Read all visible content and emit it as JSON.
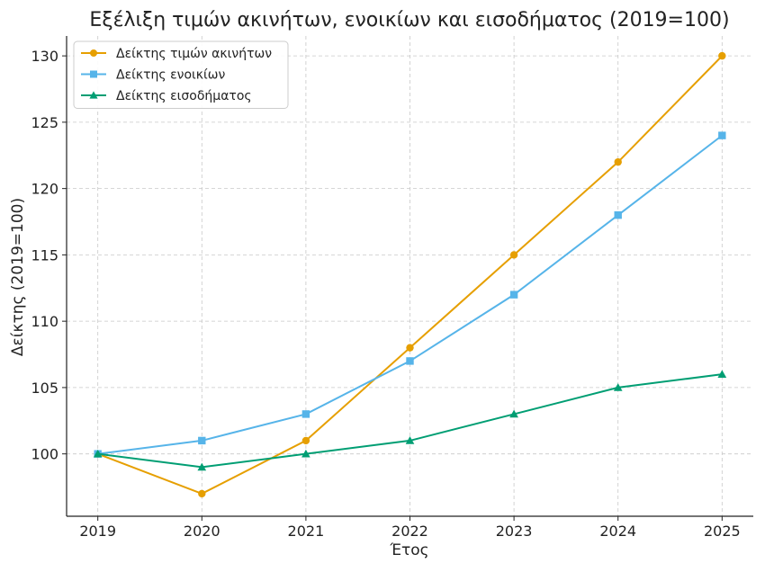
{
  "chart_data": {
    "type": "line",
    "title": "Εξέλιξη τιμών ακινήτων, ενοικίων και εισοδήματος (2019=100)",
    "xlabel": "Έτος",
    "ylabel": "Δείκτης (2019=100)",
    "x": [
      2019,
      2020,
      2021,
      2022,
      2023,
      2024,
      2025
    ],
    "xlim": [
      2018.7,
      2025.3
    ],
    "ylim": [
      95.3,
      131.5
    ],
    "yticks": [
      100,
      105,
      110,
      115,
      120,
      125,
      130
    ],
    "grid": true,
    "legend_position": "top-left",
    "series": [
      {
        "name": "Δείκτης τιμών ακινήτων",
        "color": "#E69F00",
        "marker": "circle",
        "values": [
          100,
          97,
          101,
          108,
          115,
          122,
          130
        ]
      },
      {
        "name": "Δείκτης ενοικίων",
        "color": "#56B4E9",
        "marker": "square",
        "values": [
          100,
          101,
          103,
          107,
          112,
          118,
          124
        ]
      },
      {
        "name": "Δείκτης εισοδήματος",
        "color": "#009E73",
        "marker": "triangle",
        "values": [
          100,
          99,
          100,
          101,
          103,
          105,
          106
        ]
      }
    ]
  }
}
